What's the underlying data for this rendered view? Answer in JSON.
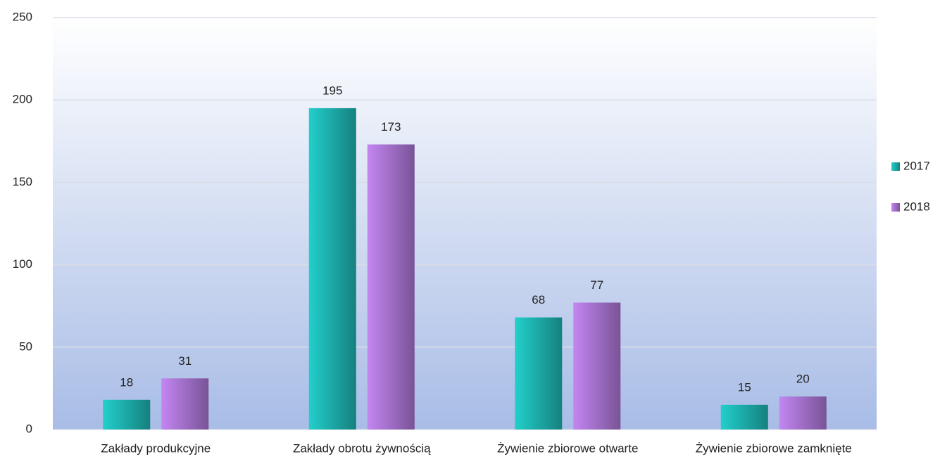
{
  "chart_data": {
    "type": "bar",
    "categories": [
      "Zakłady produkcyjne",
      "Zakłady obrotu żywnością",
      "Żywienie zbiorowe otwarte",
      "Żywienie zbiorowe zamknięte"
    ],
    "series": [
      {
        "name": "2017",
        "color": "#22cfcb",
        "values": [
          18,
          195,
          68,
          15
        ]
      },
      {
        "name": "2018",
        "color": "#c386f2",
        "values": [
          31,
          173,
          77,
          20
        ]
      }
    ],
    "ylim": [
      0,
      250
    ],
    "yticks": [
      0,
      50,
      100,
      150,
      200,
      250
    ],
    "grid": true,
    "legend": "right"
  }
}
